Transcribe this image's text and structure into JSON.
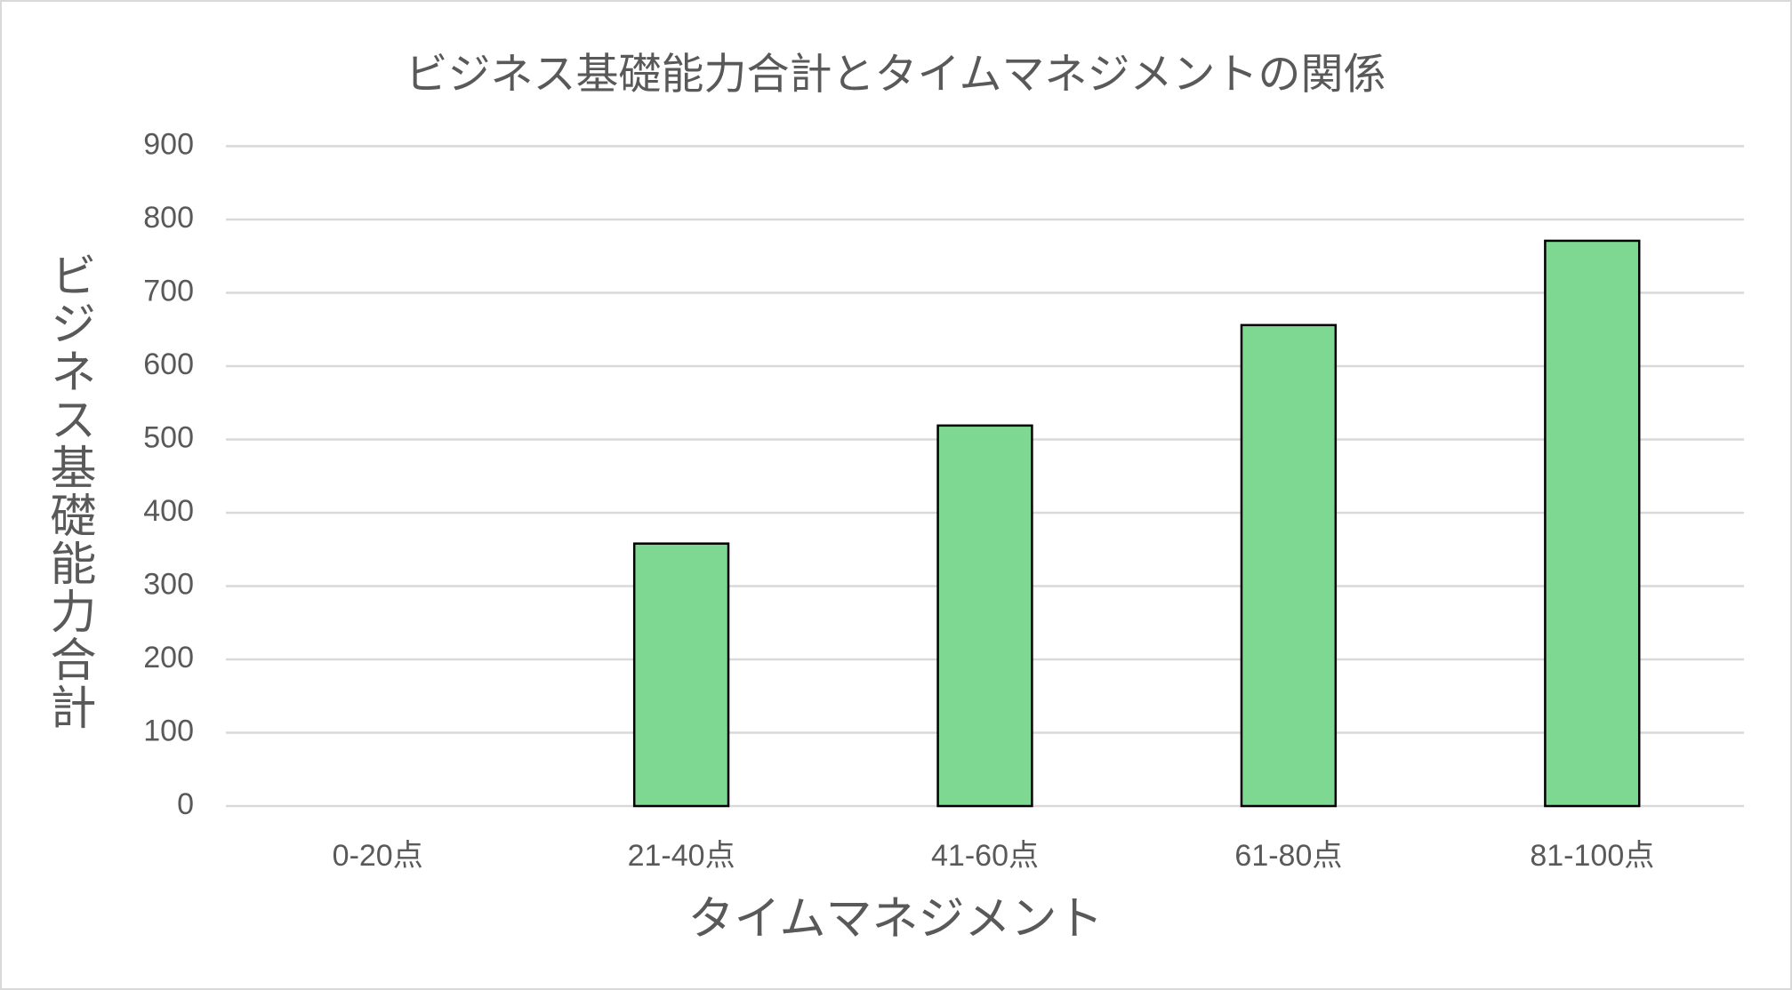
{
  "chart_data": {
    "type": "bar",
    "title": "ビジネス基礎能力合計とタイムマネジメントの関係",
    "x_label": "タイムマネジメント",
    "y_label": "ビジネス基礎能力合計",
    "categories": [
      "0-20点",
      "21-40点",
      "41-60点",
      "61-80点",
      "81-100点"
    ],
    "values": [
      0,
      358,
      519,
      656,
      771
    ],
    "color": "#7fd892",
    "ylim": [
      0,
      900
    ],
    "yticks": [
      0,
      100,
      200,
      300,
      400,
      500,
      600,
      700,
      800,
      900
    ],
    "grid": true
  }
}
